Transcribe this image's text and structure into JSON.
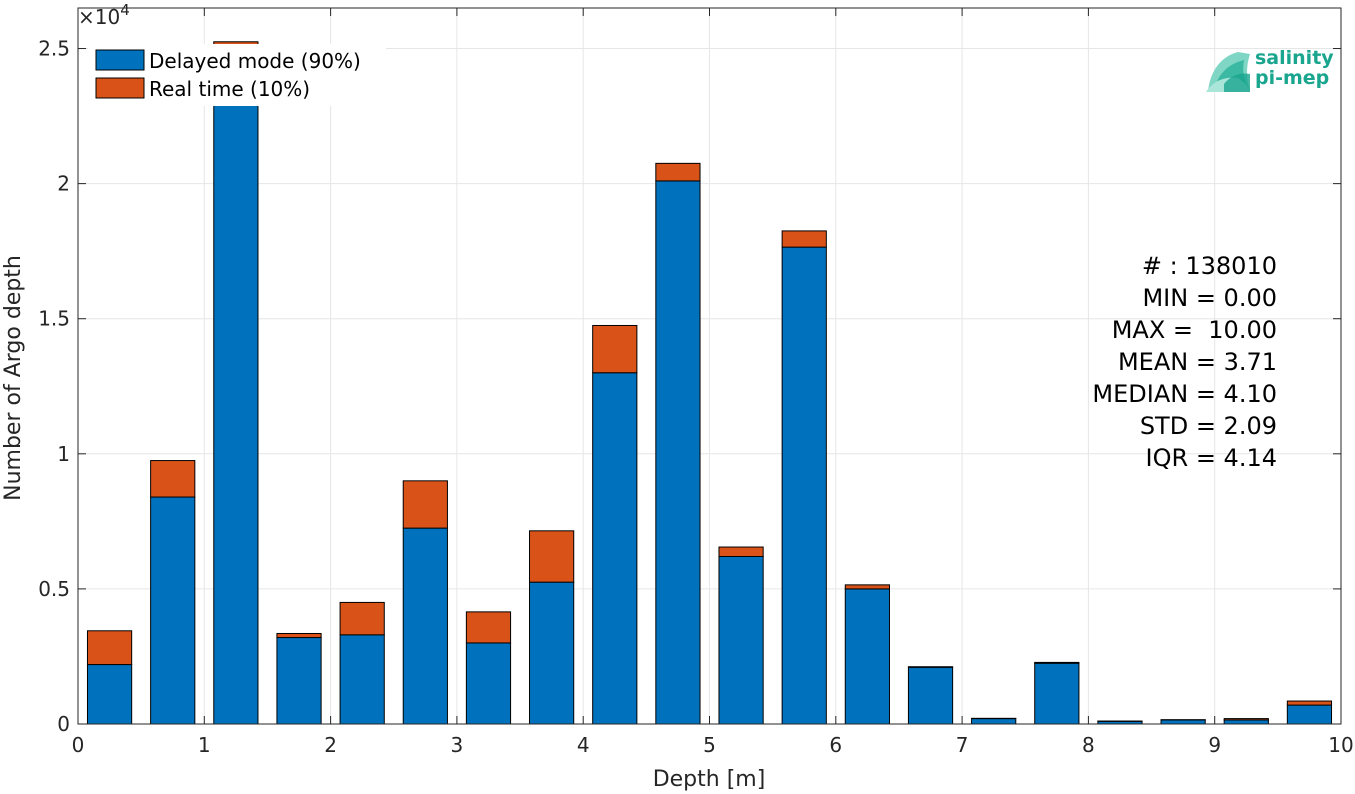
{
  "chart_data": {
    "type": "bar",
    "stacked": true,
    "xlabel": "Depth [m]",
    "ylabel": "Number of Argo depth",
    "xlim": [
      0,
      10
    ],
    "ylim": [
      0,
      26500
    ],
    "y_exponent_label": "×10",
    "y_exponent_power": "4",
    "x_ticks": [
      0,
      1,
      2,
      3,
      4,
      5,
      6,
      7,
      8,
      9,
      10
    ],
    "y_ticks": [
      0,
      5000,
      10000,
      15000,
      20000,
      25000
    ],
    "y_tick_labels": [
      "0",
      "0.5",
      "1",
      "1.5",
      "2",
      "2.5"
    ],
    "grid": true,
    "legend_position": "top-left",
    "bin_edges": [
      0,
      0.5,
      1.0,
      1.5,
      2.0,
      2.5,
      3.0,
      3.5,
      4.0,
      4.5,
      5.0,
      5.5,
      6.0,
      6.5,
      7.0,
      7.5,
      8.0,
      8.5,
      9.0,
      9.5,
      10.0
    ],
    "series": [
      {
        "name": "Delayed mode (90%)",
        "color": "#0072bd",
        "values": [
          2200,
          8400,
          23450,
          3200,
          3300,
          7250,
          3000,
          5250,
          13000,
          20100,
          6200,
          17650,
          5000,
          2100,
          200,
          2250,
          100,
          150,
          150,
          700
        ]
      },
      {
        "name": "Real time (10%)",
        "color": "#d95319",
        "values": [
          1250,
          1350,
          1800,
          150,
          1200,
          1750,
          1150,
          1900,
          1750,
          650,
          350,
          600,
          150,
          20,
          10,
          30,
          10,
          10,
          50,
          150
        ]
      }
    ],
    "stats_box": {
      "position": "right",
      "lines": [
        "# : 138010",
        "MIN = 0.00",
        "MAX =  10.00",
        "MEAN = 3.71",
        "MEDIAN = 4.10",
        "STD = 2.09",
        "IQR = 4.14"
      ]
    }
  },
  "logo": {
    "line1": "salinity",
    "line2": "pi-mep",
    "color": "#1aa58f"
  }
}
